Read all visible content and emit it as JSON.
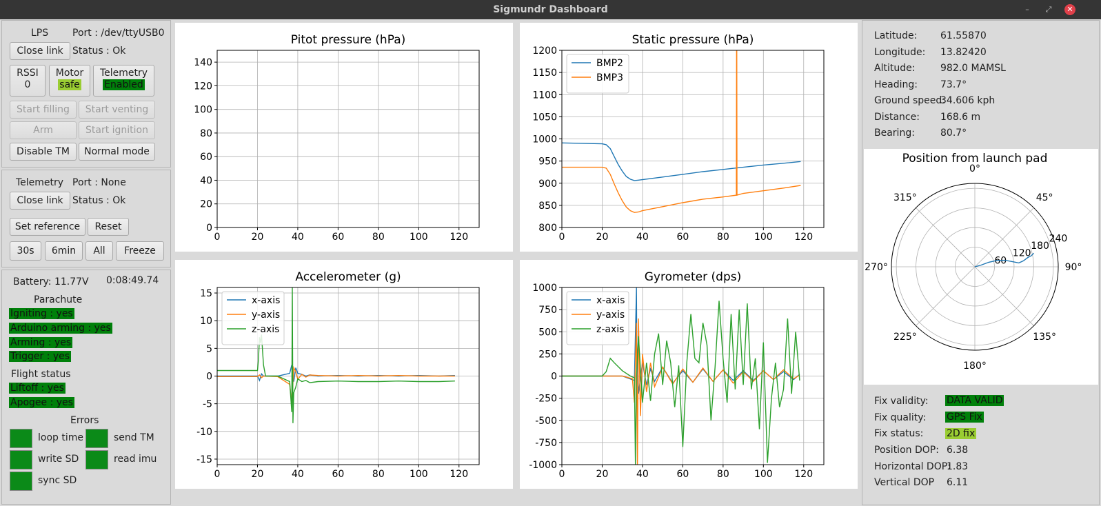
{
  "window": {
    "title": "Sigmundr Dashboard",
    "minimize": "–",
    "restore": "⤢",
    "close": "✕"
  },
  "colors": {
    "blue": "#1f77b4",
    "orange": "#ff7f0e",
    "green": "#2ca02c",
    "ok_green": "#00800a",
    "lime": "#9acd32"
  },
  "lps": {
    "name": "LPS",
    "port": "Port : /dev/ttyUSB0",
    "close_link": "Close link",
    "status": "Status : Ok",
    "rssi_label": "RSSI",
    "rssi_value": "0",
    "motor_label": "Motor",
    "motor_value": "safe",
    "telemetry_label": "Telemetry",
    "telemetry_value": "Enabled",
    "start_filling": "Start filling",
    "start_venting": "Start venting",
    "arm": "Arm",
    "start_ignition": "Start ignition",
    "disable_tm": "Disable TM",
    "normal_mode": "Normal mode"
  },
  "telemetry": {
    "name": "Telemetry",
    "port": "Port : None",
    "close_link": "Close link",
    "status": "Status : Ok",
    "set_reference": "Set reference",
    "reset": "Reset",
    "range_30s": "30s",
    "range_6min": "6min",
    "range_all": "All",
    "freeze": "Freeze"
  },
  "status": {
    "battery": "Battery: 11.77V",
    "time": "0:08:49.74",
    "parachute_title": "Parachute",
    "parachute": [
      "Igniting : yes",
      "Arduino arming : yes",
      "Arming : yes",
      "Trigger : yes"
    ],
    "flight_title": "Flight status",
    "flight": [
      "Liftoff : yes",
      "Apogee : yes"
    ],
    "errors_title": "Errors",
    "errors": [
      "loop time",
      "send TM",
      "write SD",
      "read imu",
      "sync SD"
    ]
  },
  "gps": {
    "rows": [
      {
        "label": "Latitude:",
        "value": "61.55870"
      },
      {
        "label": "Longitude:",
        "value": "13.82420"
      },
      {
        "label": "Altitude:",
        "value": "982.0 MAMSL"
      },
      {
        "label": "Heading:",
        "value": "73.7°"
      },
      {
        "label": "Ground speed:",
        "value": "34.606 kph"
      },
      {
        "label": "Distance:",
        "value": "168.6 m"
      },
      {
        "label": "Bearing:",
        "value": "80.7°"
      }
    ],
    "fix_validity_label": "Fix validity:",
    "fix_validity": "DATA VALID",
    "fix_quality_label": "Fix quality:",
    "fix_quality": "GPS Fix",
    "fix_status_label": "Fix status:",
    "fix_status": "2D fix",
    "dop_rows": [
      {
        "label": "Position DOP:",
        "value": "6.38"
      },
      {
        "label": "Horizontal DOP:",
        "value": "1.83"
      },
      {
        "label": "Vertical DOP",
        "value": "6.11"
      }
    ]
  },
  "chart_data": [
    {
      "type": "line",
      "title": "Pitot pressure (hPa)",
      "xlim": [
        0,
        130
      ],
      "ylim": [
        0,
        150
      ],
      "xticks": [
        0,
        20,
        40,
        60,
        80,
        100,
        120
      ],
      "yticks": [
        0,
        20,
        40,
        60,
        80,
        100,
        120,
        140
      ],
      "grid": true,
      "series": []
    },
    {
      "type": "line",
      "title": "Static pressure (hPa)",
      "xlim": [
        0,
        130
      ],
      "ylim": [
        800,
        1200
      ],
      "xticks": [
        0,
        20,
        40,
        60,
        80,
        100,
        120
      ],
      "yticks": [
        800,
        850,
        900,
        950,
        1000,
        1050,
        1100,
        1150,
        1200
      ],
      "grid": true,
      "legend": "top-left",
      "series": [
        {
          "name": "BMP2",
          "color": "#1f77b4",
          "x": [
            0,
            10,
            20,
            22,
            24,
            26,
            28,
            30,
            32,
            34,
            36,
            38,
            40,
            50,
            60,
            70,
            80,
            90,
            100,
            110,
            118.5
          ],
          "y": [
            991,
            990,
            989,
            987,
            978,
            960,
            942,
            927,
            915,
            909,
            906,
            907,
            908,
            914,
            920,
            926,
            931,
            936,
            941,
            945,
            949
          ]
        },
        {
          "name": "BMP3",
          "color": "#ff7f0e",
          "x": [
            0,
            10,
            20,
            22,
            24,
            26,
            28,
            30,
            32,
            34,
            36,
            38,
            40,
            50,
            60,
            70,
            80,
            86.6,
            86.7,
            86.8,
            86.9,
            90,
            100,
            110,
            118.5
          ],
          "y": [
            936,
            936,
            936,
            934,
            920,
            898,
            878,
            860,
            846,
            838,
            834,
            835,
            838,
            847,
            856,
            864,
            869,
            873,
            1200,
            1200,
            873,
            877,
            883,
            889,
            895
          ]
        }
      ]
    },
    {
      "type": "line",
      "title": "Accelerometer (g)",
      "xlim": [
        0,
        130
      ],
      "ylim": [
        -16,
        16
      ],
      "xticks": [
        0,
        20,
        40,
        60,
        80,
        100,
        120
      ],
      "yticks": [
        -15,
        -10,
        -5,
        0,
        5,
        10,
        15
      ],
      "grid": true,
      "legend": "top-left",
      "series": [
        {
          "name": "x-axis",
          "color": "#1f77b4",
          "x": [
            0,
            20,
            21,
            22,
            23,
            30,
            36,
            37,
            38,
            39,
            40,
            42,
            44,
            46,
            50,
            60,
            70,
            80,
            90,
            100,
            110,
            118
          ],
          "y": [
            0,
            0,
            -0.8,
            0.4,
            0,
            0,
            0.5,
            2.0,
            -1.0,
            1.5,
            0.5,
            0.3,
            0,
            0.2,
            0,
            0.1,
            0,
            0.1,
            0,
            0.1,
            0,
            0.1
          ]
        },
        {
          "name": "y-axis",
          "color": "#ff7f0e",
          "x": [
            0,
            20,
            21,
            22,
            23,
            30,
            36,
            37,
            38,
            39,
            40,
            42,
            44,
            46,
            50,
            60,
            70,
            80,
            90,
            100,
            110,
            118
          ],
          "y": [
            -0.1,
            -0.1,
            0.2,
            -0.3,
            0,
            -0.1,
            -1.5,
            -5.0,
            1.5,
            0.8,
            -0.6,
            0.3,
            -0.2,
            0.2,
            0.1,
            0,
            0.1,
            0,
            0.1,
            0,
            0,
            0
          ]
        },
        {
          "name": "z-axis",
          "color": "#2ca02c",
          "x": [
            0,
            20,
            20.5,
            21,
            21.5,
            22,
            23,
            24,
            30,
            36,
            37,
            37.3,
            37.6,
            38,
            39,
            40,
            42,
            44,
            46,
            50,
            60,
            70,
            80,
            90,
            100,
            110,
            118
          ],
          "y": [
            1,
            1,
            3,
            7,
            6,
            7.5,
            2,
            0,
            0,
            -1,
            -6.5,
            16,
            -8.5,
            -3,
            -2,
            -0.5,
            -1,
            -0.8,
            -1.2,
            -1,
            -0.9,
            -1,
            -1,
            -0.9,
            -1,
            -1,
            -0.9
          ]
        }
      ]
    },
    {
      "type": "line",
      "title": "Gyrometer (dps)",
      "xlim": [
        0,
        130
      ],
      "ylim": [
        -1000,
        1000
      ],
      "xticks": [
        0,
        20,
        40,
        60,
        80,
        100,
        120
      ],
      "yticks": [
        -1000,
        -750,
        -500,
        -250,
        0,
        250,
        500,
        750,
        1000
      ],
      "grid": true,
      "legend": "top-left",
      "series": [
        {
          "name": "x-axis",
          "color": "#1f77b4",
          "x": [
            0,
            20,
            30,
            36,
            37,
            37.3,
            37.6,
            38,
            40,
            42,
            44,
            46,
            50,
            55,
            60,
            65,
            70,
            75,
            80,
            85,
            90,
            95,
            100,
            105,
            110,
            115,
            118
          ],
          "y": [
            0,
            0,
            0,
            -50,
            1000,
            -200,
            300,
            -200,
            150,
            -100,
            80,
            -60,
            100,
            -80,
            60,
            -70,
            80,
            -60,
            70,
            -50,
            60,
            -50,
            60,
            -40,
            50,
            -40,
            20
          ]
        },
        {
          "name": "y-axis",
          "color": "#ff7f0e",
          "x": [
            0,
            20,
            30,
            35,
            36,
            37,
            37.5,
            38,
            39,
            40,
            42,
            44,
            46,
            50,
            55,
            60,
            65,
            70,
            75,
            80,
            85,
            90,
            95,
            100,
            105,
            110,
            115,
            118
          ],
          "y": [
            0,
            0,
            0,
            -30,
            -300,
            600,
            -1000,
            650,
            -450,
            250,
            -180,
            150,
            -120,
            100,
            -90,
            80,
            -70,
            90,
            -60,
            70,
            -80,
            50,
            -60,
            60,
            -40,
            70,
            -30,
            10
          ]
        },
        {
          "name": "z-axis",
          "color": "#2ca02c",
          "x": [
            0,
            20,
            22,
            24,
            26,
            30,
            34,
            36,
            36.5,
            37,
            38,
            40,
            42,
            44,
            46,
            48,
            50,
            52,
            54,
            56,
            58,
            60,
            62,
            64,
            66,
            68,
            70,
            72,
            74,
            76,
            78,
            80,
            82,
            84,
            86,
            88,
            90,
            92,
            94,
            96,
            98,
            100,
            102,
            104,
            106,
            108,
            110,
            112,
            114,
            116,
            118
          ],
          "y": [
            0,
            0,
            50,
            200,
            150,
            60,
            0,
            -20,
            -1000,
            0,
            450,
            -300,
            150,
            -280,
            250,
            480,
            -100,
            400,
            150,
            -350,
            120,
            -800,
            150,
            700,
            200,
            150,
            600,
            350,
            -500,
            100,
            850,
            200,
            -300,
            700,
            -150,
            750,
            -100,
            820,
            -150,
            200,
            -600,
            380,
            -980,
            -250,
            150,
            -350,
            -150,
            650,
            -200,
            500,
            -50
          ]
        }
      ]
    },
    {
      "type": "polar",
      "title": "Position from launch pad",
      "angle_labels": [
        "0°",
        "45°",
        "90°",
        "135°",
        "180°",
        "225°",
        "270°",
        "315°"
      ],
      "radial_ticks": [
        60,
        120,
        180,
        240
      ],
      "rmax": 255,
      "series": [
        {
          "color": "#1f77b4",
          "theta": [
            90,
            75,
            72,
            74,
            78,
            82,
            85,
            83,
            80,
            79,
            77
          ],
          "r": [
            0,
            20,
            45,
            70,
            95,
            115,
            135,
            150,
            165,
            175,
            185
          ]
        }
      ]
    }
  ]
}
